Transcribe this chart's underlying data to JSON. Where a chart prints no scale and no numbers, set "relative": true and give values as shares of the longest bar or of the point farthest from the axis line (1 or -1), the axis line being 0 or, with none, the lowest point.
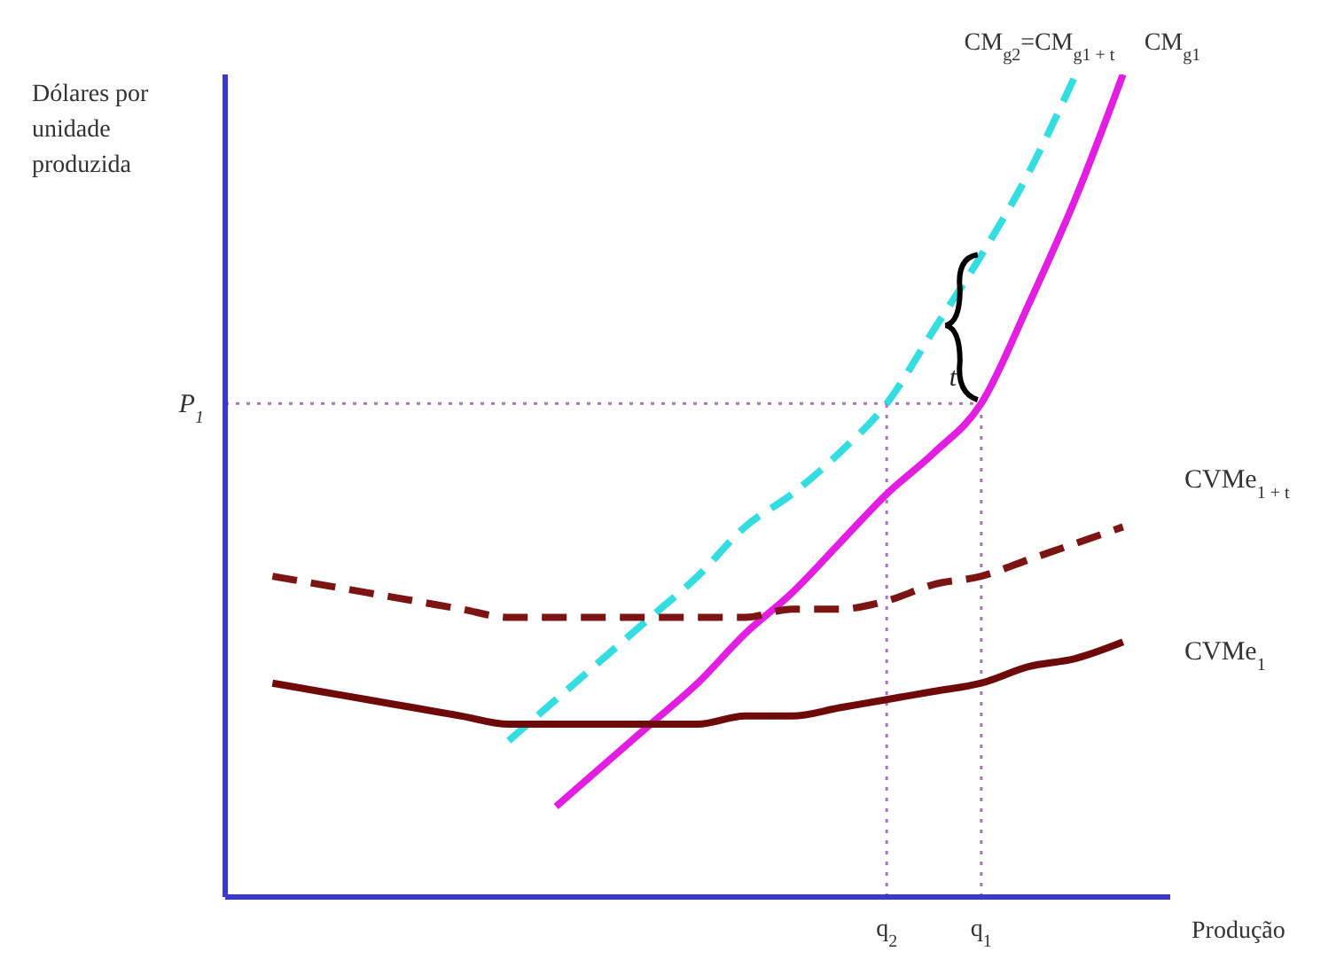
{
  "chart_data": {
    "type": "line",
    "relative": true,
    "xlabel": "Produção",
    "ylabel": "Dólares por unidade produzida",
    "categories": [
      null,
      null,
      null,
      null,
      null,
      null,
      null,
      null,
      null,
      null,
      null,
      null,
      null,
      null,
      "q$_{2}$",
      null,
      "q$_{1}$",
      null,
      null,
      null,
      null
    ],
    "series": [
      {
        "name": "CM$_{g1}$",
        "color": "#e21ee2",
        "line_style": "solid",
        "values": [
          null,
          null,
          null,
          null,
          null,
          null,
          null,
          0.11,
          0.16,
          0.21,
          0.26,
          0.32,
          0.37,
          0.43,
          0.49,
          0.54,
          0.6,
          0.72,
          0.85,
          1.0,
          null
        ]
      },
      {
        "name": "CM$_{g2}$=CM$_{g1 + t}$",
        "color": "#33dde0",
        "line_style": "dashed",
        "values": [
          null,
          null,
          null,
          null,
          null,
          null,
          0.19,
          0.24,
          0.29,
          0.34,
          0.39,
          0.45,
          0.49,
          0.54,
          0.6,
          0.69,
          0.78,
          0.88,
          1.0,
          null,
          null
        ]
      },
      {
        "name": "CVMe$_{1 + t}$",
        "color": "#7d1414",
        "line_style": "dashed",
        "values": [
          null,
          0.39,
          0.38,
          0.37,
          0.36,
          0.35,
          0.34,
          0.34,
          0.34,
          0.34,
          0.34,
          0.34,
          0.35,
          0.35,
          0.36,
          0.38,
          0.39,
          0.41,
          0.43,
          0.45,
          null
        ]
      },
      {
        "name": "CVMe$_{1}$",
        "color": "#6e0a0a",
        "line_style": "solid",
        "values": [
          null,
          0.26,
          0.25,
          0.24,
          0.23,
          0.22,
          0.21,
          0.21,
          0.21,
          0.21,
          0.21,
          0.22,
          0.22,
          0.23,
          0.24,
          0.25,
          0.26,
          0.28,
          0.29,
          0.31,
          null
        ]
      }
    ],
    "ref_lines": [
      {
        "axis": "y",
        "value": 0.6,
        "label": "P$_{1}$",
        "color": "#b070c0",
        "line_style": "dotted"
      },
      {
        "axis": "x",
        "value": "q$_{2}$",
        "color": "#b070c0",
        "line_style": "dotted"
      },
      {
        "axis": "x",
        "value": "q$_{1}$",
        "color": "#b070c0",
        "line_style": "dotted"
      }
    ],
    "annotations": [
      "t"
    ]
  }
}
